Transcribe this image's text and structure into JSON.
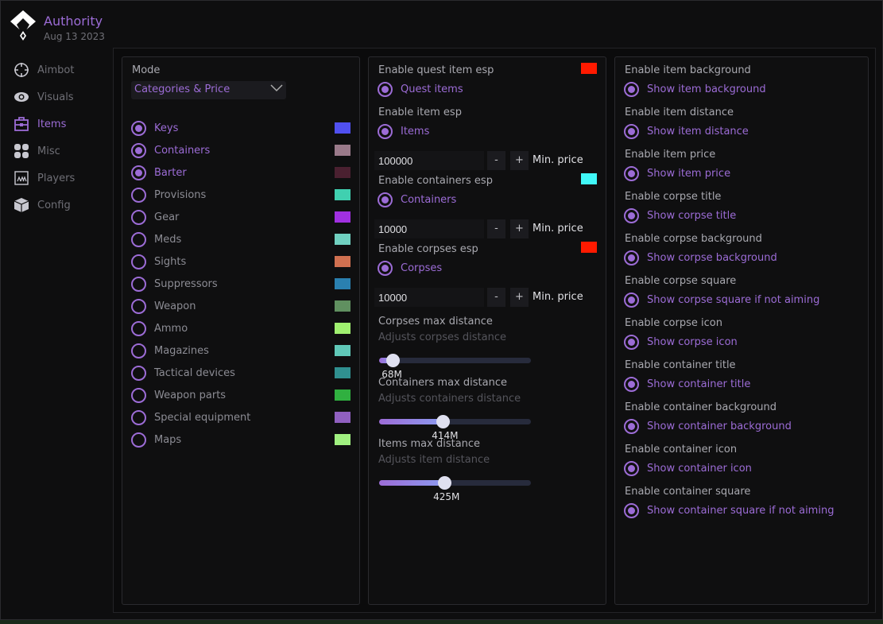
{
  "app": {
    "title": "Authority",
    "date": "Aug 13 2023"
  },
  "nav": [
    {
      "label": "Aimbot",
      "icon": "crosshair-icon"
    },
    {
      "label": "Visuals",
      "icon": "eye-icon"
    },
    {
      "label": "Items",
      "icon": "briefcase-icon",
      "active": true
    },
    {
      "label": "Misc",
      "icon": "grid-icon"
    },
    {
      "label": "Players",
      "icon": "players-icon"
    },
    {
      "label": "Config",
      "icon": "cube-icon"
    }
  ],
  "left": {
    "mode_label": "Mode",
    "mode_value": "Categories & Price",
    "categories": [
      {
        "label": "Keys",
        "checked": true,
        "color": "#5050f0"
      },
      {
        "label": "Containers",
        "checked": true,
        "color": "#9a7a8a"
      },
      {
        "label": "Barter",
        "checked": true,
        "color": "#4a2030"
      },
      {
        "label": "Provisions",
        "checked": false,
        "color": "#40d0b0"
      },
      {
        "label": "Gear",
        "checked": false,
        "color": "#a030e0"
      },
      {
        "label": "Meds",
        "checked": false,
        "color": "#70d0c0"
      },
      {
        "label": "Sights",
        "checked": false,
        "color": "#d07050"
      },
      {
        "label": "Suppressors",
        "checked": false,
        "color": "#2a80b0"
      },
      {
        "label": "Weapon",
        "checked": false,
        "color": "#609060"
      },
      {
        "label": "Ammo",
        "checked": false,
        "color": "#a0f070"
      },
      {
        "label": "Magazines",
        "checked": false,
        "color": "#60c8b8"
      },
      {
        "label": "Tactical devices",
        "checked": false,
        "color": "#309090"
      },
      {
        "label": "Weapon parts",
        "checked": false,
        "color": "#30b040"
      },
      {
        "label": "Special equipment",
        "checked": false,
        "color": "#9060c0"
      },
      {
        "label": "Maps",
        "checked": false,
        "color": "#a0f080"
      }
    ]
  },
  "middle": {
    "sections": [
      {
        "label": "Enable quest item esp",
        "option": "Quest items",
        "color": "#ff1a00"
      },
      {
        "label": "Enable item esp",
        "option": "Items",
        "min_price": "100000"
      },
      {
        "label": "Enable containers esp",
        "option": "Containers",
        "color": "#40f8f8",
        "min_price": "10000"
      },
      {
        "label": "Enable corpses esp",
        "option": "Corpses",
        "color": "#ff1a00",
        "min_price": "10000"
      }
    ],
    "minus": "-",
    "plus": "+",
    "min_price_label": "Min. price",
    "sliders": [
      {
        "label": "Corpses max distance",
        "desc": "Adjusts corpses distance",
        "value": "68M",
        "fraction": 0.09
      },
      {
        "label": "Containers max distance",
        "desc": "Adjusts containers distance",
        "value": "414M",
        "fraction": 0.42
      },
      {
        "label": "Items max distance",
        "desc": "Adjusts item distance",
        "value": "425M",
        "fraction": 0.43
      }
    ]
  },
  "right": [
    {
      "label": "Enable item background",
      "option": "Show item background"
    },
    {
      "label": "Enable item distance",
      "option": "Show item distance"
    },
    {
      "label": "Enable item price",
      "option": "Show item price"
    },
    {
      "label": "Enable corpse title",
      "option": "Show corpse title"
    },
    {
      "label": "Enable corpse background",
      "option": "Show corpse background"
    },
    {
      "label": "Enable corpse square",
      "option": "Show corpse square if not aiming"
    },
    {
      "label": "Enable corpse icon",
      "option": "Show corpse icon"
    },
    {
      "label": "Enable container title",
      "option": "Show container title"
    },
    {
      "label": "Enable container background",
      "option": "Show container background"
    },
    {
      "label": "Enable container icon",
      "option": "Show container icon"
    },
    {
      "label": "Enable container square",
      "option": "Show container square if not aiming"
    }
  ]
}
